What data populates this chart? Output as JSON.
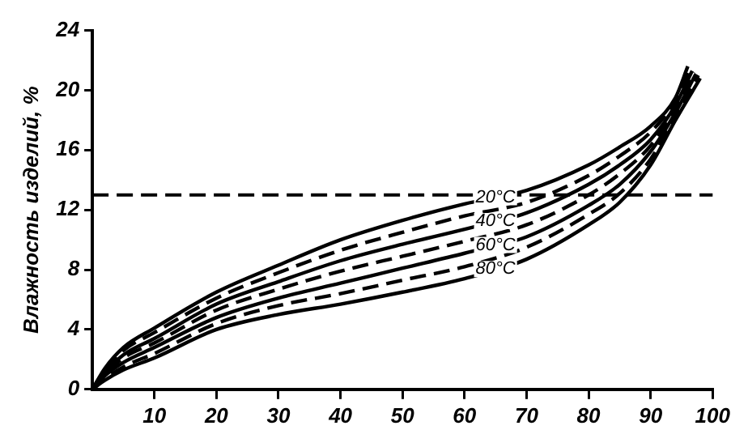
{
  "chart_data": {
    "type": "line",
    "ylabel": "Влажность изделий, %",
    "series": [
      {
        "name": "20°C",
        "color": "#000000",
        "line_style": "solid",
        "x": [
          0,
          2,
          5,
          10,
          20,
          30,
          40,
          50,
          60,
          70,
          80,
          85,
          90,
          94,
          96
        ],
        "values": [
          0,
          1.4,
          2.8,
          4.1,
          6.5,
          8.3,
          10.0,
          11.3,
          12.4,
          13.3,
          15.0,
          16.2,
          17.6,
          19.5,
          21.6
        ]
      },
      {
        "color": "#000000",
        "line_style": "dashed",
        "x": [
          0,
          2,
          5,
          10,
          20,
          30,
          40,
          50,
          60,
          70,
          80,
          85,
          90,
          94,
          96.3
        ],
        "values": [
          0,
          1.3,
          2.6,
          3.8,
          6.1,
          7.8,
          9.3,
          10.5,
          11.6,
          12.5,
          14.3,
          15.6,
          17.2,
          19.3,
          21.4
        ]
      },
      {
        "name": "40°C",
        "color": "#000000",
        "line_style": "solid",
        "x": [
          0,
          2,
          5,
          10,
          20,
          30,
          40,
          50,
          60,
          70,
          80,
          85,
          90,
          94,
          96.7
        ],
        "values": [
          0,
          1.1,
          2.3,
          3.4,
          5.7,
          7.2,
          8.6,
          9.7,
          10.7,
          11.8,
          13.7,
          15.0,
          16.7,
          19.0,
          21.3
        ]
      },
      {
        "color": "#000000",
        "line_style": "dashed",
        "x": [
          0,
          2,
          5,
          10,
          20,
          30,
          40,
          50,
          60,
          70,
          80,
          85,
          90,
          94,
          97
        ],
        "values": [
          0,
          1.0,
          2.1,
          3.1,
          5.3,
          6.7,
          7.9,
          8.9,
          9.9,
          11.0,
          13.0,
          14.4,
          16.3,
          18.8,
          21.2
        ]
      },
      {
        "name": "60°C",
        "color": "#000000",
        "line_style": "solid",
        "x": [
          0,
          2,
          5,
          10,
          20,
          30,
          40,
          50,
          60,
          70,
          80,
          85,
          90,
          94,
          97.3
        ],
        "values": [
          0,
          0.9,
          1.8,
          2.8,
          4.8,
          6.1,
          7.1,
          8.1,
          9.1,
          10.2,
          12.3,
          13.7,
          15.9,
          18.5,
          21.1
        ]
      },
      {
        "color": "#000000",
        "line_style": "dashed",
        "x": [
          0,
          2,
          5,
          10,
          20,
          30,
          40,
          50,
          60,
          70,
          80,
          85,
          90,
          94,
          97.7
        ],
        "values": [
          0,
          0.7,
          1.5,
          2.4,
          4.4,
          5.6,
          6.4,
          7.3,
          8.2,
          9.5,
          11.7,
          13.1,
          15.4,
          18.3,
          21.0
        ]
      },
      {
        "name": "80°C",
        "color": "#000000",
        "line_style": "solid",
        "x": [
          0,
          2,
          5,
          10,
          20,
          30,
          40,
          50,
          60,
          70,
          80,
          85,
          90,
          94,
          98
        ],
        "values": [
          0,
          0.6,
          1.3,
          2.1,
          4.0,
          5.0,
          5.7,
          6.5,
          7.4,
          8.7,
          11.0,
          12.5,
          15.0,
          18.0,
          20.8
        ]
      }
    ],
    "xlim": [
      0,
      100
    ],
    "xticks": [
      10,
      20,
      30,
      40,
      50,
      60,
      70,
      80,
      90,
      100
    ],
    "ylim": [
      0,
      24
    ],
    "yticks": [
      0,
      4,
      8,
      12,
      16,
      20,
      24
    ],
    "ref_lines": [
      {
        "axis": "y",
        "value": 13,
        "color": "#000000",
        "line_style": "dashed"
      }
    ],
    "marker": "none",
    "legend": false,
    "grid": false
  }
}
